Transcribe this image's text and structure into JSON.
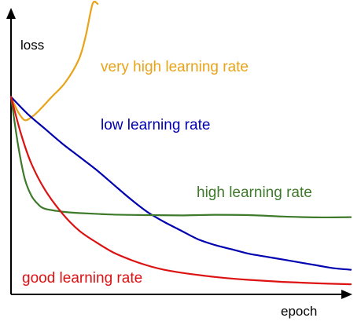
{
  "chart_data": {
    "type": "line",
    "title": "",
    "xlabel": "epoch",
    "ylabel": "loss",
    "grid": false,
    "xlim": [
      0,
      100
    ],
    "ylim": [
      0,
      100
    ],
    "series": [
      {
        "name": "very high learning rate",
        "color": "#e8a317",
        "x": [
          0,
          2,
          4,
          6,
          8,
          12,
          16,
          20,
          22,
          24,
          25.5
        ],
        "y": [
          68,
          63,
          60,
          61,
          63,
          68,
          73,
          81,
          89,
          100,
          100
        ]
      },
      {
        "name": "low learning rate",
        "color": "#0000b0",
        "x": [
          0,
          5,
          10,
          15,
          20,
          25,
          30,
          35,
          40,
          45,
          50,
          55,
          60,
          65,
          70,
          75,
          80,
          85,
          90,
          95,
          100
        ],
        "y": [
          68,
          62,
          57,
          52,
          47.5,
          43,
          38,
          33,
          28.5,
          25,
          22,
          19,
          17,
          15.5,
          14,
          13,
          12,
          11,
          10,
          9,
          8.5
        ]
      },
      {
        "name": "high learning rate",
        "color": "#3d7a2a",
        "x": [
          0,
          2,
          4,
          6,
          8,
          10,
          15,
          20,
          30,
          40,
          50,
          60,
          70,
          80,
          90,
          100
        ],
        "y": [
          68,
          52,
          40,
          34,
          31,
          29.5,
          28.5,
          28,
          27.5,
          27.3,
          27.2,
          27.4,
          27.3,
          26.8,
          26.5,
          26.6
        ]
      },
      {
        "name": "good learning rate",
        "color": "#dd1111",
        "x": [
          0,
          3,
          6,
          10,
          15,
          20,
          25,
          30,
          35,
          40,
          45,
          50,
          60,
          70,
          80,
          90,
          100
        ],
        "y": [
          68,
          55,
          45,
          36,
          28,
          22,
          18,
          14.5,
          12,
          10,
          8.5,
          7.5,
          6,
          5,
          4.3,
          3.8,
          3.5
        ]
      }
    ]
  }
}
